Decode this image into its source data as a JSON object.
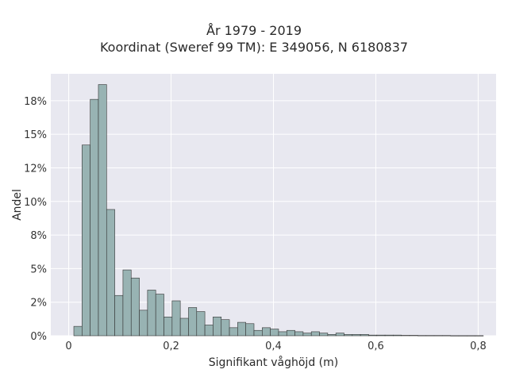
{
  "chart_data": {
    "type": "bar",
    "title": "År 1979 - 2019",
    "subtitle": "Koordinat (Sweref 99 TM): E 349056, N 6180837",
    "xlabel": "Signifikant våghöjd (m)",
    "ylabel": "Andel",
    "xlim": [
      -0.035,
      0.835
    ],
    "ylim": [
      0,
      0.195
    ],
    "x_ticks": [
      0,
      0.2,
      0.4,
      0.6,
      0.8
    ],
    "x_tick_labels": [
      "0",
      "0,2",
      "0,4",
      "0,6",
      "0,8"
    ],
    "y_ticks": [
      0,
      0.025,
      0.05,
      0.075,
      0.1,
      0.125,
      0.15,
      0.175
    ],
    "y_tick_labels": [
      "0%",
      "2%",
      "5%",
      "8%",
      "10%",
      "12%",
      "15%",
      "18%"
    ],
    "bin_start": 0.01,
    "bin_width": 0.016,
    "values": [
      0.007,
      0.142,
      0.176,
      0.187,
      0.094,
      0.03,
      0.049,
      0.043,
      0.019,
      0.034,
      0.031,
      0.014,
      0.026,
      0.013,
      0.021,
      0.018,
      0.008,
      0.014,
      0.012,
      0.006,
      0.01,
      0.009,
      0.004,
      0.006,
      0.005,
      0.003,
      0.004,
      0.003,
      0.002,
      0.003,
      0.002,
      0.001,
      0.002,
      0.001,
      0.001,
      0.001,
      0.0005,
      0.0005,
      0.0005,
      0.0005,
      0.0003,
      0.0003,
      0.0002,
      0.0002,
      0.0002,
      0.0002,
      0.0001,
      0.0001,
      0.0001,
      0.0001
    ],
    "grid": true,
    "legend": "none",
    "colors": {
      "bar_fill": "#98b3b3",
      "bar_edge": "#333333",
      "plot_background": "#e8e8f0",
      "grid": "#ffffff"
    }
  }
}
